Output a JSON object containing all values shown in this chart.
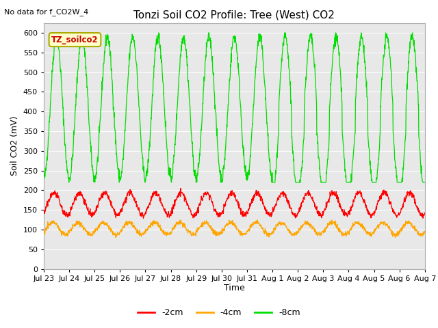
{
  "title": "Tonzi Soil CO2 Profile: Tree (West) CO2",
  "top_left_note": "No data for f_CO2W_4",
  "ylabel": "Soil CO2 (mV)",
  "xlabel": "Time",
  "ylim": [
    0,
    625
  ],
  "yticks": [
    0,
    50,
    100,
    150,
    200,
    250,
    300,
    350,
    400,
    450,
    500,
    550,
    600
  ],
  "bg_color": "#e8e8e8",
  "fig_bg": "#ffffff",
  "line_colors": {
    "neg2cm": "#ff0000",
    "neg4cm": "#ffa500",
    "neg8cm": "#00dd00"
  },
  "legend_box_label": "TZ_soilco2",
  "legend_entries": [
    "-2cm",
    "-4cm",
    "-8cm"
  ],
  "x_tick_labels": [
    "Jul 23",
    "Jul 24",
    "Jul 25",
    "Jul 26",
    "Jul 27",
    "Jul 28",
    "Jul 29",
    "Jul 30",
    "Jul 31",
    "Aug 1",
    "Aug 2",
    "Aug 3",
    "Aug 4",
    "Aug 5",
    "Aug 6",
    "Aug 7"
  ],
  "title_fontsize": 11,
  "axis_label_fontsize": 9,
  "tick_fontsize": 8
}
